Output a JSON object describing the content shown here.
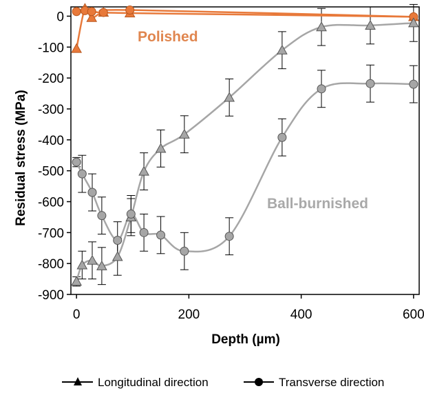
{
  "chart_data": {
    "type": "line",
    "xlabel": "Depth (µm)",
    "ylabel": "Residual stress (MPa)",
    "xlim": [
      -10,
      610
    ],
    "ylim": [
      -900,
      30
    ],
    "xticks": [
      0,
      200,
      400,
      600
    ],
    "yticks": [
      0,
      -100,
      -200,
      -300,
      -400,
      -500,
      -600,
      -700,
      -800,
      -900
    ],
    "grid": false,
    "legend_position": "bottom",
    "legend": [
      {
        "label": "Longitudinal direction",
        "marker": "triangle"
      },
      {
        "label": "Transverse direction",
        "marker": "circle"
      }
    ],
    "annotations": [
      {
        "text": "Polished",
        "color": "#e0864f"
      },
      {
        "text": "Ball-burnished",
        "color": "#a9a9a9"
      }
    ],
    "series": [
      {
        "condition": "Polished",
        "direction": "Longitudinal",
        "marker": "triangle",
        "color": "#e8793a",
        "error_bars": false,
        "x": [
          0,
          15,
          27,
          48,
          95,
          600
        ],
        "y": [
          -105,
          25,
          -5,
          12,
          10,
          -2
        ]
      },
      {
        "condition": "Polished",
        "direction": "Transverse",
        "marker": "circle",
        "color": "#e8793a",
        "error_bars": false,
        "x": [
          0,
          15,
          27,
          48,
          95,
          600
        ],
        "y": [
          15,
          18,
          15,
          12,
          20,
          -2
        ]
      },
      {
        "condition": "Ball-burnished",
        "direction": "Longitudinal",
        "marker": "triangle",
        "color": "#a6a6a6",
        "error_bars": true,
        "x": [
          0,
          10,
          28,
          45,
          73,
          97,
          120,
          150,
          192,
          272,
          366,
          436,
          523,
          600
        ],
        "y": [
          -858,
          -805,
          -790,
          -808,
          -778,
          -650,
          -502,
          -428,
          -382,
          -263,
          -110,
          -35,
          -30,
          -22
        ],
        "err": [
          15,
          45,
          60,
          60,
          60,
          60,
          60,
          60,
          60,
          60,
          60,
          60,
          60,
          60
        ]
      },
      {
        "condition": "Ball-burnished",
        "direction": "Transverse",
        "marker": "circle",
        "color": "#a6a6a6",
        "error_bars": true,
        "x": [
          0,
          10,
          28,
          45,
          73,
          97,
          120,
          150,
          192,
          272,
          366,
          436,
          523,
          600
        ],
        "y": [
          -472,
          -510,
          -570,
          -645,
          -725,
          -640,
          -700,
          -708,
          -760,
          -712,
          -392,
          -235,
          -218,
          -220
        ],
        "err": [
          15,
          60,
          60,
          60,
          60,
          60,
          60,
          60,
          60,
          60,
          60,
          60,
          60,
          60
        ]
      }
    ]
  }
}
